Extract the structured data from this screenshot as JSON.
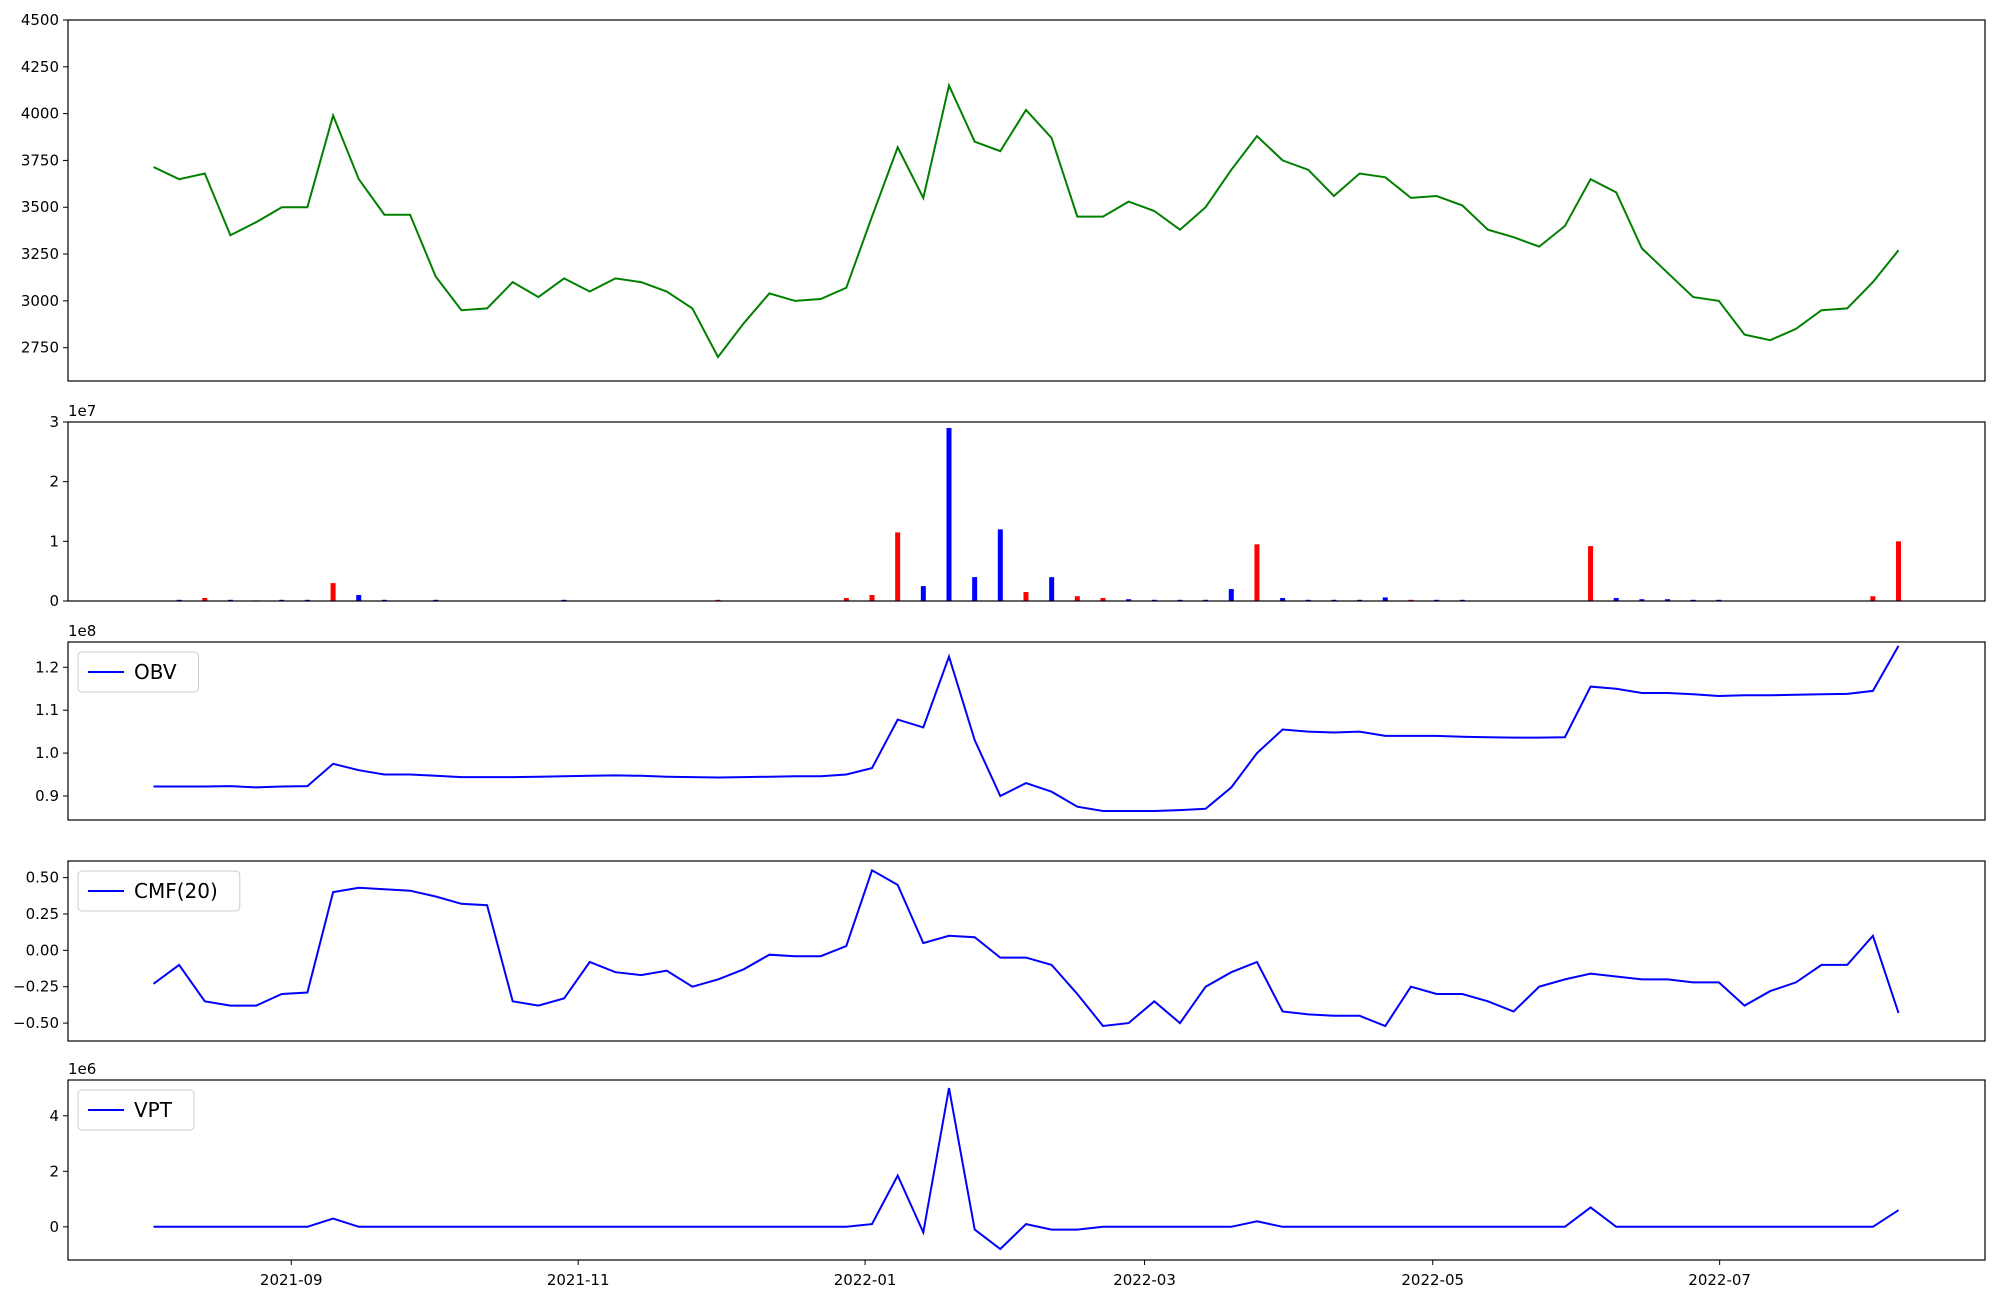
{
  "chart_data": [
    {
      "type": "line",
      "xlim": [
        -3.33,
        71.37
      ],
      "ylim": [
        2572,
        4500
      ],
      "yticks": [
        2750,
        3000,
        3250,
        3500,
        3750,
        4000,
        4250,
        4500
      ],
      "series": [
        {
          "color": "#008000",
          "values": [
            3715,
            3650,
            3680,
            3350,
            3420,
            3500,
            3500,
            3990,
            3650,
            3460,
            3460,
            3130,
            2950,
            2960,
            3100,
            3020,
            3120,
            3050,
            3120,
            3100,
            3050,
            2960,
            2700,
            2880,
            3040,
            3000,
            3010,
            3070,
            3450,
            3820,
            3550,
            4150,
            3850,
            3800,
            4020,
            3870,
            3450,
            3450,
            3530,
            3480,
            3380,
            3500,
            3700,
            3880,
            3750,
            3700,
            3560,
            3680,
            3660,
            3550,
            3560,
            3510,
            3380,
            3340,
            3290,
            3400,
            3650,
            3580,
            3280,
            3150,
            3020,
            3000,
            2820,
            2790,
            2850,
            2950,
            2960,
            3100,
            3270
          ]
        }
      ]
    },
    {
      "type": "bar",
      "xlim": [
        -3.33,
        71.37
      ],
      "ylim": [
        0,
        3
      ],
      "yticks": [
        0,
        1,
        2,
        3
      ],
      "offset_text": "1e7",
      "values": [
        0,
        0.02,
        0.05,
        0.02,
        0.01,
        0.02,
        0.02,
        0.3,
        0.1,
        0.02,
        0,
        0.02,
        0,
        0,
        0,
        0,
        0.02,
        0,
        0,
        0,
        0,
        0,
        0.02,
        0,
        0,
        0,
        0,
        0.05,
        0.1,
        1.15,
        0.25,
        2.9,
        0.4,
        1.2,
        0.15,
        0.4,
        0.08,
        0.05,
        0.03,
        0.02,
        0.02,
        0.02,
        0.2,
        0.95,
        0.05,
        0.02,
        0.02,
        0.02,
        0.06,
        0.02,
        0.02,
        0.02,
        0,
        0,
        0,
        0,
        0.92,
        0.05,
        0.03,
        0.03,
        0.02,
        0.02,
        0,
        0,
        0,
        0,
        0,
        0.08,
        1.0
      ],
      "colors": [
        "#0000ff",
        "#0000ff",
        "#ff0000",
        "#0000ff",
        "#0000ff",
        "#0000ff",
        "#0000ff",
        "#ff0000",
        "#0000ff",
        "#0000ff",
        "#0000ff",
        "#0000ff",
        "#0000ff",
        "#0000ff",
        "#0000ff",
        "#0000ff",
        "#0000ff",
        "#0000ff",
        "#0000ff",
        "#0000ff",
        "#0000ff",
        "#0000ff",
        "#ff0000",
        "#0000ff",
        "#0000ff",
        "#0000ff",
        "#0000ff",
        "#ff0000",
        "#ff0000",
        "#ff0000",
        "#0000ff",
        "#0000ff",
        "#0000ff",
        "#0000ff",
        "#ff0000",
        "#0000ff",
        "#ff0000",
        "#ff0000",
        "#0000ff",
        "#0000ff",
        "#0000ff",
        "#0000ff",
        "#0000ff",
        "#ff0000",
        "#0000ff",
        "#0000ff",
        "#0000ff",
        "#0000ff",
        "#0000ff",
        "#ff0000",
        "#0000ff",
        "#0000ff",
        "#0000ff",
        "#0000ff",
        "#0000ff",
        "#0000ff",
        "#ff0000",
        "#0000ff",
        "#0000ff",
        "#0000ff",
        "#0000ff",
        "#0000ff",
        "#0000ff",
        "#0000ff",
        "#0000ff",
        "#0000ff",
        "#0000ff",
        "#ff0000",
        "#ff0000"
      ]
    },
    {
      "type": "line",
      "xlim": [
        -3.33,
        71.37
      ],
      "ylim": [
        0.844,
        1.259
      ],
      "offset_text": "1e8",
      "legend": "upper left",
      "yticks": [
        0.9,
        {
          "value": 1,
          "label": "1.0"
        },
        1.1,
        1.2
      ],
      "series": [
        {
          "name": "OBV",
          "color": "#0000ff",
          "values": [
            0.922,
            0.922,
            0.922,
            0.923,
            0.92,
            0.922,
            0.923,
            0.975,
            0.96,
            0.95,
            0.95,
            0.947,
            0.944,
            0.944,
            0.944,
            0.945,
            0.946,
            0.947,
            0.948,
            0.947,
            0.945,
            0.944,
            0.943,
            0.944,
            0.945,
            0.946,
            0.946,
            0.95,
            0.965,
            1.078,
            1.06,
            1.225,
            1.03,
            0.9,
            0.93,
            0.91,
            0.875,
            0.865,
            0.865,
            0.865,
            0.867,
            0.87,
            0.92,
            1.0,
            1.055,
            1.05,
            1.048,
            1.05,
            1.04,
            1.04,
            1.04,
            1.038,
            1.037,
            1.036,
            1.036,
            1.037,
            1.155,
            1.15,
            1.14,
            1.14,
            1.137,
            1.133,
            1.135,
            1.135,
            1.136,
            1.137,
            1.138,
            1.145,
            1.25
          ]
        }
      ]
    },
    {
      "type": "line",
      "xlim": [
        -3.33,
        71.37
      ],
      "ylim": [
        -0.623,
        0.614
      ],
      "legend": "upper left",
      "yticks": [
        {
          "value": -0.5,
          "label": "−0.50"
        },
        {
          "value": -0.25,
          "label": "−0.25"
        },
        {
          "value": 0,
          "label": "0.00"
        },
        0.25,
        {
          "value": 0.5,
          "label": "0.50"
        }
      ],
      "series": [
        {
          "name": "CMF(20)",
          "color": "#0000ff",
          "values": [
            -0.23,
            -0.1,
            -0.35,
            -0.38,
            -0.38,
            -0.3,
            -0.29,
            0.4,
            0.43,
            0.42,
            0.41,
            0.37,
            0.32,
            0.31,
            -0.35,
            -0.38,
            -0.33,
            -0.08,
            -0.15,
            -0.17,
            -0.14,
            -0.25,
            -0.2,
            -0.13,
            -0.03,
            -0.04,
            -0.04,
            0.03,
            0.55,
            0.45,
            0.05,
            0.1,
            0.09,
            -0.05,
            -0.05,
            -0.1,
            -0.3,
            -0.52,
            -0.5,
            -0.35,
            -0.5,
            -0.25,
            -0.15,
            -0.08,
            -0.42,
            -0.44,
            -0.45,
            -0.45,
            -0.52,
            -0.25,
            -0.3,
            -0.3,
            -0.35,
            -0.42,
            -0.25,
            -0.2,
            -0.16,
            -0.18,
            -0.2,
            -0.2,
            -0.22,
            -0.22,
            -0.38,
            -0.28,
            -0.22,
            -0.1,
            -0.1,
            0.1,
            -0.43
          ]
        }
      ]
    },
    {
      "type": "line",
      "xlim": [
        -3.33,
        71.37
      ],
      "ylim": [
        -1.195,
        5.29
      ],
      "offset_text": "1e6",
      "legend": "upper left",
      "yticks": [
        0,
        2,
        4
      ],
      "xticks": [
        {
          "value": 5.37,
          "label": "2021-09"
        },
        {
          "value": 16.55,
          "label": "2021-11"
        },
        {
          "value": 27.73,
          "label": "2022-01"
        },
        {
          "value": 38.62,
          "label": "2022-03"
        },
        {
          "value": 49.85,
          "label": "2022-05"
        },
        {
          "value": 61.03,
          "label": "2022-07"
        }
      ],
      "series": [
        {
          "name": "VPT",
          "color": "#0000ff",
          "values": [
            0,
            0,
            0,
            0,
            0,
            0,
            0,
            0.3,
            0,
            0,
            0,
            0,
            0,
            0,
            0,
            0,
            0,
            0,
            0,
            0,
            0,
            0,
            0,
            0,
            0,
            0,
            0,
            0,
            0.1,
            1.85,
            -0.2,
            5.0,
            -0.1,
            -0.8,
            0.1,
            -0.1,
            -0.1,
            0,
            0,
            0,
            0,
            0,
            0,
            0.2,
            0,
            0,
            0,
            0,
            0,
            0,
            0,
            0,
            0,
            0,
            0,
            0,
            0.7,
            0,
            0,
            0,
            0,
            0,
            0,
            0,
            0,
            0,
            0,
            0,
            0.6
          ]
        }
      ]
    }
  ]
}
